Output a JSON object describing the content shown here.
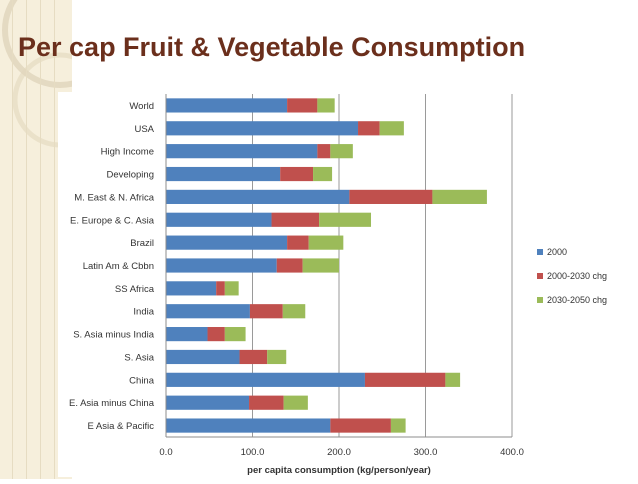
{
  "slide": {
    "title": "Per cap Fruit & Vegetable Consumption"
  },
  "colors": {
    "series_2000": "#4f81bd",
    "series_2000_2030": "#c0504d",
    "series_2030_2050": "#9bbb59",
    "title": "#6b2f1c",
    "background_deco": "#f6efdc"
  },
  "chart_data": {
    "type": "bar",
    "orientation": "horizontal",
    "stacked": true,
    "title": "",
    "xlabel": "per capita consumption (kg/person/year)",
    "ylabel": "",
    "xlim": [
      0,
      400
    ],
    "xticks": [
      0,
      100,
      200,
      300,
      400
    ],
    "xtick_labels": [
      "0.0",
      "100.0",
      "200.0",
      "300.0",
      "400.0"
    ],
    "gridlines": "vertical",
    "legend_position": "right",
    "categories": [
      "World",
      "USA",
      "High Income",
      "Developing",
      "M. East & N. Africa",
      "E. Europe & C. Asia",
      "Brazil",
      "Latin Am & Cbbn",
      "SS Africa",
      "India",
      "S. Asia minus India",
      "S. Asia",
      "China",
      "E. Asia minus China",
      "E Asia & Pacific"
    ],
    "series": [
      {
        "name": "2000",
        "values": [
          140,
          222,
          175,
          132,
          212,
          122,
          140,
          128,
          58,
          97,
          48,
          85,
          230,
          96,
          190
        ]
      },
      {
        "name": "2000-2030 chg",
        "values": [
          35,
          25,
          15,
          38,
          96,
          55,
          25,
          30,
          10,
          38,
          20,
          32,
          93,
          40,
          70
        ]
      },
      {
        "name": "2030-2050 chg",
        "values": [
          20,
          28,
          26,
          22,
          63,
          60,
          40,
          42,
          16,
          26,
          24,
          22,
          17,
          28,
          17
        ]
      }
    ]
  }
}
